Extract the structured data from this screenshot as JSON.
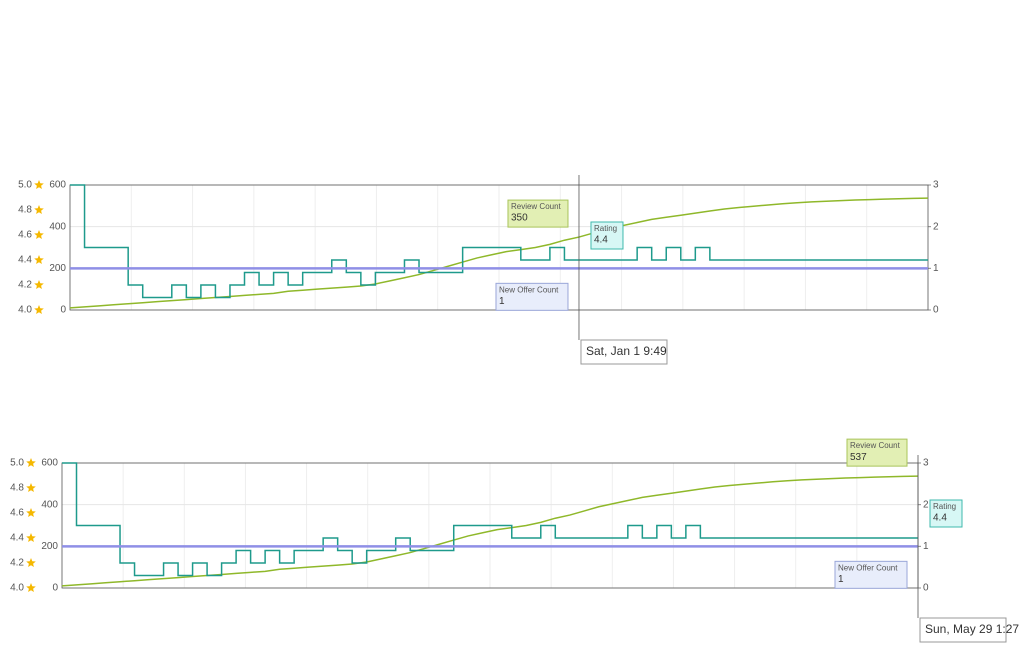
{
  "chart_data": [
    {
      "type": "line",
      "series": [
        {
          "name": "Review Count",
          "color": "#8fb82a",
          "axis": "y",
          "values": [
            10,
            15,
            20,
            25,
            30,
            35,
            40,
            45,
            50,
            55,
            60,
            65,
            70,
            75,
            80,
            90,
            95,
            100,
            105,
            110,
            115,
            125,
            140,
            155,
            170,
            190,
            210,
            230,
            250,
            265,
            280,
            290,
            300,
            315,
            335,
            350,
            370,
            390,
            405,
            420,
            435,
            445,
            455,
            465,
            475,
            485,
            492,
            498,
            504,
            510,
            515,
            519,
            522,
            525,
            528,
            530,
            532,
            534,
            536,
            537
          ]
        },
        {
          "name": "Rating",
          "color": "#1e9a8c",
          "axis": "y3",
          "values": [
            5.0,
            4.5,
            4.5,
            4.5,
            4.2,
            4.1,
            4.1,
            4.2,
            4.1,
            4.2,
            4.1,
            4.2,
            4.3,
            4.2,
            4.3,
            4.2,
            4.3,
            4.3,
            4.4,
            4.3,
            4.2,
            4.3,
            4.3,
            4.4,
            4.3,
            4.3,
            4.3,
            4.5,
            4.5,
            4.5,
            4.5,
            4.4,
            4.4,
            4.5,
            4.4,
            4.4,
            4.4,
            4.4,
            4.4,
            4.5,
            4.4,
            4.5,
            4.4,
            4.5,
            4.4,
            4.4,
            4.4,
            4.4,
            4.4,
            4.4,
            4.4,
            4.4,
            4.4,
            4.4,
            4.4,
            4.4,
            4.4,
            4.4,
            4.4,
            4.4
          ]
        },
        {
          "name": "New Offer Count",
          "color": "#8f8fe6",
          "axis": "y2",
          "values": [
            1,
            1,
            1,
            1,
            1,
            1,
            1,
            1,
            1,
            1,
            1,
            1,
            1,
            1,
            1,
            1,
            1,
            1,
            1,
            1,
            1,
            1,
            1,
            1,
            1,
            1,
            1,
            1,
            1,
            1,
            1,
            1,
            1,
            1,
            1,
            1,
            1,
            1,
            1,
            1,
            1,
            1,
            1,
            1,
            1,
            1,
            1,
            1,
            1,
            1,
            1,
            1,
            1,
            1,
            1,
            1,
            1,
            1,
            1,
            1
          ]
        }
      ],
      "ylim": [
        0,
        600
      ],
      "yticks": [
        0,
        200,
        400,
        600
      ],
      "y2lim": [
        0,
        3
      ],
      "y2ticks": [
        0,
        1,
        2,
        3
      ],
      "y3lim": [
        4,
        5
      ],
      "y3ticks": [
        {
          "value": 4,
          "label": "4.0"
        },
        4.2,
        4.4,
        4.6,
        4.8,
        {
          "value": 5,
          "label": "5.0"
        }
      ],
      "grid": true,
      "tooltip": {
        "label": "Sat, Jan 1 9:49",
        "values": [
          350,
          4.4,
          1
        ]
      }
    },
    {
      "type": "line",
      "series": [
        {
          "name": "Review Count",
          "color": "#8fb82a",
          "axis": "y",
          "values": [
            10,
            15,
            20,
            25,
            30,
            35,
            40,
            45,
            50,
            55,
            60,
            65,
            70,
            75,
            80,
            90,
            95,
            100,
            105,
            110,
            115,
            125,
            140,
            155,
            170,
            190,
            210,
            230,
            250,
            265,
            280,
            290,
            300,
            315,
            335,
            350,
            370,
            390,
            405,
            420,
            435,
            445,
            455,
            465,
            475,
            485,
            492,
            498,
            504,
            510,
            515,
            519,
            522,
            525,
            528,
            530,
            532,
            534,
            536,
            537
          ]
        },
        {
          "name": "Rating",
          "color": "#1e9a8c",
          "axis": "y3",
          "values": [
            5.0,
            4.5,
            4.5,
            4.5,
            4.2,
            4.1,
            4.1,
            4.2,
            4.1,
            4.2,
            4.1,
            4.2,
            4.3,
            4.2,
            4.3,
            4.2,
            4.3,
            4.3,
            4.4,
            4.3,
            4.2,
            4.3,
            4.3,
            4.4,
            4.3,
            4.3,
            4.3,
            4.5,
            4.5,
            4.5,
            4.5,
            4.4,
            4.4,
            4.5,
            4.4,
            4.4,
            4.4,
            4.4,
            4.4,
            4.5,
            4.4,
            4.5,
            4.4,
            4.5,
            4.4,
            4.4,
            4.4,
            4.4,
            4.4,
            4.4,
            4.4,
            4.4,
            4.4,
            4.4,
            4.4,
            4.4,
            4.4,
            4.4,
            4.4,
            4.4
          ]
        },
        {
          "name": "New Offer Count",
          "color": "#8f8fe6",
          "axis": "y2",
          "values": [
            1,
            1,
            1,
            1,
            1,
            1,
            1,
            1,
            1,
            1,
            1,
            1,
            1,
            1,
            1,
            1,
            1,
            1,
            1,
            1,
            1,
            1,
            1,
            1,
            1,
            1,
            1,
            1,
            1,
            1,
            1,
            1,
            1,
            1,
            1,
            1,
            1,
            1,
            1,
            1,
            1,
            1,
            1,
            1,
            1,
            1,
            1,
            1,
            1,
            1,
            1,
            1,
            1,
            1,
            1,
            1,
            1,
            1,
            1,
            1
          ]
        }
      ],
      "ylim": [
        0,
        600
      ],
      "yticks": [
        0,
        200,
        400,
        600
      ],
      "y2lim": [
        0,
        3
      ],
      "y2ticks": [
        0,
        1,
        2,
        3
      ],
      "y3lim": [
        4,
        5
      ],
      "y3ticks": [
        {
          "value": 4,
          "label": "4.0"
        },
        4.2,
        4.4,
        4.6,
        4.8,
        {
          "value": 5,
          "label": "5.0"
        }
      ],
      "grid": true,
      "tooltip": {
        "label": "Sun, May 29 1:27",
        "values": [
          537,
          4.4,
          1
        ]
      }
    }
  ]
}
